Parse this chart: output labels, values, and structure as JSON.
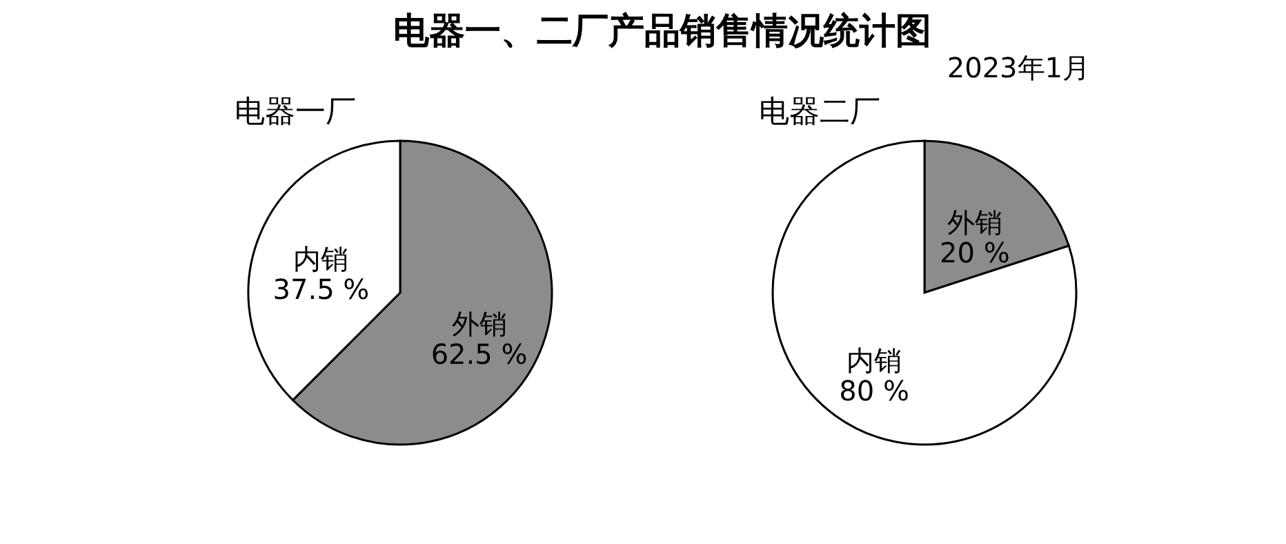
{
  "chart_data": [
    {
      "type": "pie",
      "title": "电器一厂",
      "annotations": [
        "电器一、二厂产品销售情况统计图"
      ],
      "categories": [
        "外销",
        "内销"
      ],
      "values": [
        62.5,
        37.5
      ],
      "colors": [
        "#8c8c8c",
        "#ffffff"
      ],
      "value_labels": [
        "62.5 %",
        "37.5 %"
      ],
      "legend": false
    },
    {
      "type": "pie",
      "title": "电器二厂",
      "annotations": [
        "2023年1月"
      ],
      "categories": [
        "外销",
        "内销"
      ],
      "values": [
        20,
        80
      ],
      "colors": [
        "#8c8c8c",
        "#ffffff"
      ],
      "value_labels": [
        "20 %",
        "80 %"
      ],
      "legend": false
    }
  ]
}
